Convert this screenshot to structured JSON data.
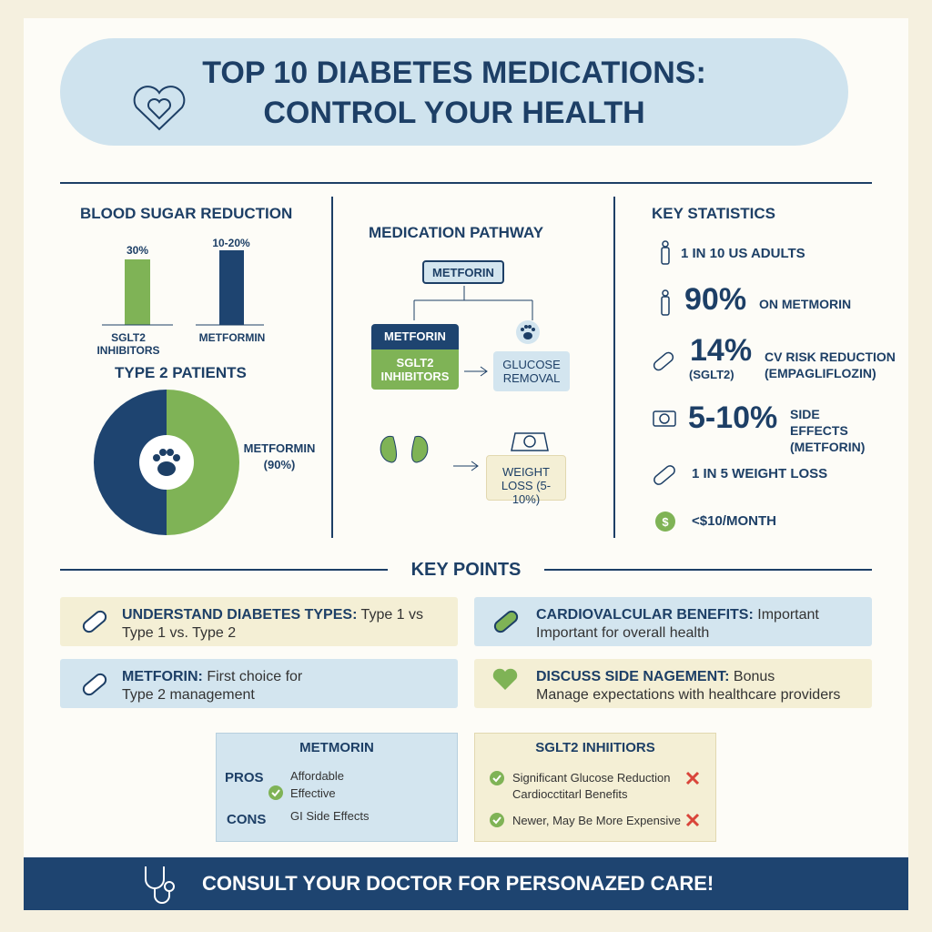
{
  "header": {
    "title_lines": [
      "TOP 10 DIABETES MEDICATIONS:",
      "CONTROL YOUR HEALTH"
    ]
  },
  "blood_sugar": {
    "title": "BLOOD SUGAR REDUCTION",
    "bars": [
      {
        "label": "30%",
        "name": "SGLT2 INHIBITORS"
      },
      {
        "label": "10-20%",
        "name": "METFORMIN"
      }
    ],
    "patients_title": "TYPE 2 PATIENTS",
    "pie_label": [
      "METFORMIN",
      "(90%)"
    ]
  },
  "pathway": {
    "title": "MEDICATION PATHWAY",
    "top": "METFORIN",
    "left_head": "METFORIN",
    "left_body": "SGLT2 INHIBITORS",
    "glucose": "GLUCOSE REMOVAL",
    "weight": "WEIGHT LOSS (5-10%)"
  },
  "stats": {
    "title": "KEY STATISTICS",
    "items": [
      {
        "text": "1 IN 10 US ADULTS"
      },
      {
        "big": "90%",
        "text": "ON METMORIN"
      },
      {
        "big": "14%",
        "sub": "(SGLT2)",
        "text": "CV RISK REDUCTION (EMPAGLIFLOZIN)"
      },
      {
        "big": "5-10%",
        "text": "SIDE EFFECTS (METFORIN)"
      },
      {
        "text": "1 IN 5 WEIGHT LOSS"
      },
      {
        "text": "<$10/MONTH"
      }
    ]
  },
  "key_points": {
    "title": "KEY POINTS",
    "items": [
      {
        "lead": "UNDERSTAND DIABETES TYPES:",
        "lines": [
          "Type 1 vs",
          "Type 1 vs. Type 2"
        ]
      },
      {
        "lead": "CARDIOVALCULAR BENEFITS:",
        "lines": [
          "Important",
          "Important for overall health"
        ]
      },
      {
        "lead": "METFORIN:",
        "lines": [
          "First choice for",
          "Type 2 management"
        ]
      },
      {
        "lead": "DISCUSS SIDE NAGEMENT:",
        "lines": [
          "Bonus",
          "Manage expectations with healthcare providers"
        ]
      }
    ]
  },
  "comparison": {
    "metformin": {
      "title": "METMORIN",
      "pros_label": "PROS",
      "pros": [
        "Affordable",
        "Effective"
      ],
      "cons_label": "CONS",
      "cons": [
        "GI Side Effects"
      ]
    },
    "sglt2": {
      "title": "SGLT2 INHIITIORS",
      "items": [
        "Significant Glucose Reduction",
        "Cardiocctitarl Benefits",
        "Newer, May Be More Expensive"
      ]
    }
  },
  "footer": {
    "text": "CONSULT YOUR DOCTOR FOR PERSONAZED CARE!"
  }
}
